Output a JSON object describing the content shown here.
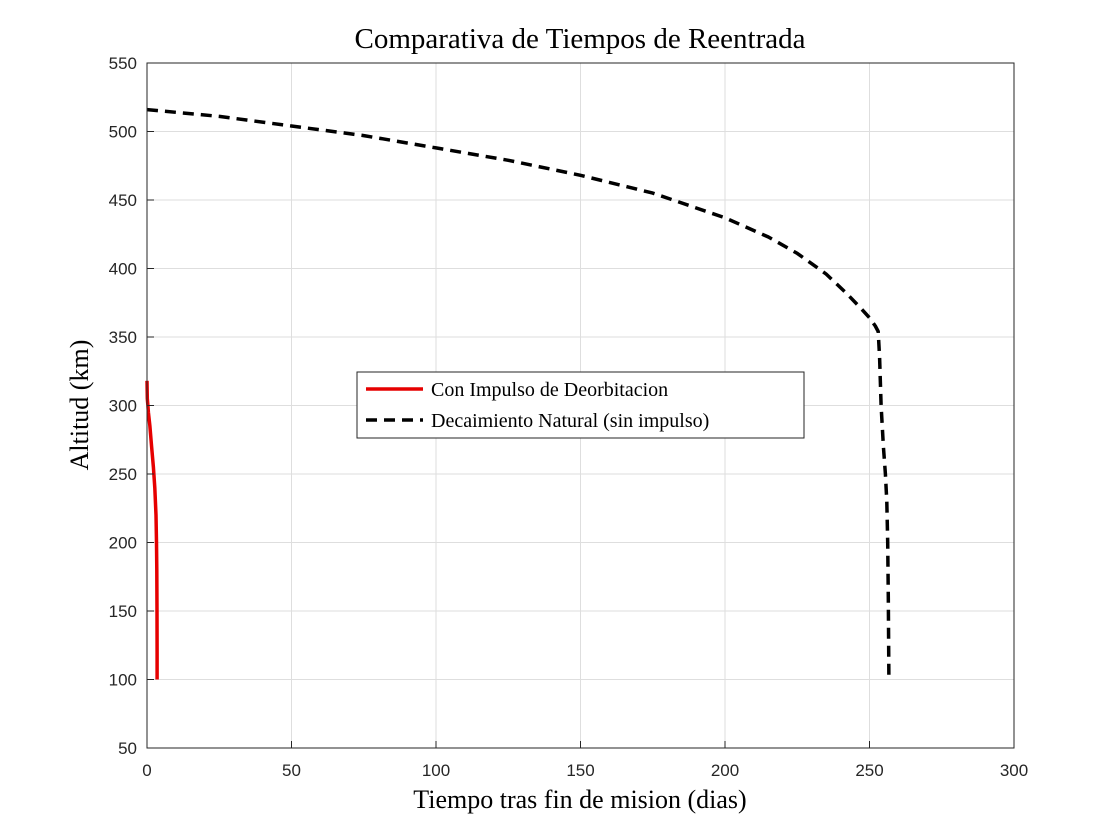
{
  "chart_data": {
    "type": "line",
    "title": "Comparativa de Tiempos de Reentrada",
    "xlabel": "Tiempo tras fin de mision (dias)",
    "ylabel": "Altitud (km)",
    "xlim": [
      0,
      300
    ],
    "ylim": [
      50,
      550
    ],
    "xticks": [
      "0",
      "50",
      "100",
      "150",
      "200",
      "250",
      "300"
    ],
    "yticks": [
      "50",
      "100",
      "150",
      "200",
      "250",
      "300",
      "350",
      "400",
      "450",
      "500",
      "550"
    ],
    "grid": true,
    "legend_position": "center-left",
    "series": [
      {
        "name": "Con Impulso de Deorbitacion",
        "color": "#e60000",
        "style": "solid",
        "x": [
          0,
          0.1,
          0.3,
          0.5,
          1.0,
          1.6,
          2.2,
          2.7,
          3.1,
          3.3,
          3.4,
          3.45,
          3.5,
          3.5
        ],
        "y": [
          318,
          305,
          300,
          295,
          285,
          270,
          255,
          240,
          220,
          200,
          180,
          150,
          120,
          100
        ]
      },
      {
        "name": "Decaimiento Natural (sin impulso)",
        "color": "#000000",
        "style": "dashed",
        "x": [
          0,
          25,
          50,
          75,
          100,
          125,
          150,
          175,
          200,
          215,
          225,
          235,
          242,
          247,
          250,
          252,
          253,
          253.5,
          254,
          254.8,
          255.5,
          256,
          256.3,
          256.5,
          256.6,
          256.7
        ],
        "y": [
          516,
          511,
          504,
          497,
          488,
          479,
          468,
          455,
          437,
          423,
          411,
          396,
          382,
          371,
          364,
          358,
          354,
          335,
          300,
          270,
          250,
          230,
          200,
          160,
          130,
          100
        ]
      }
    ]
  }
}
